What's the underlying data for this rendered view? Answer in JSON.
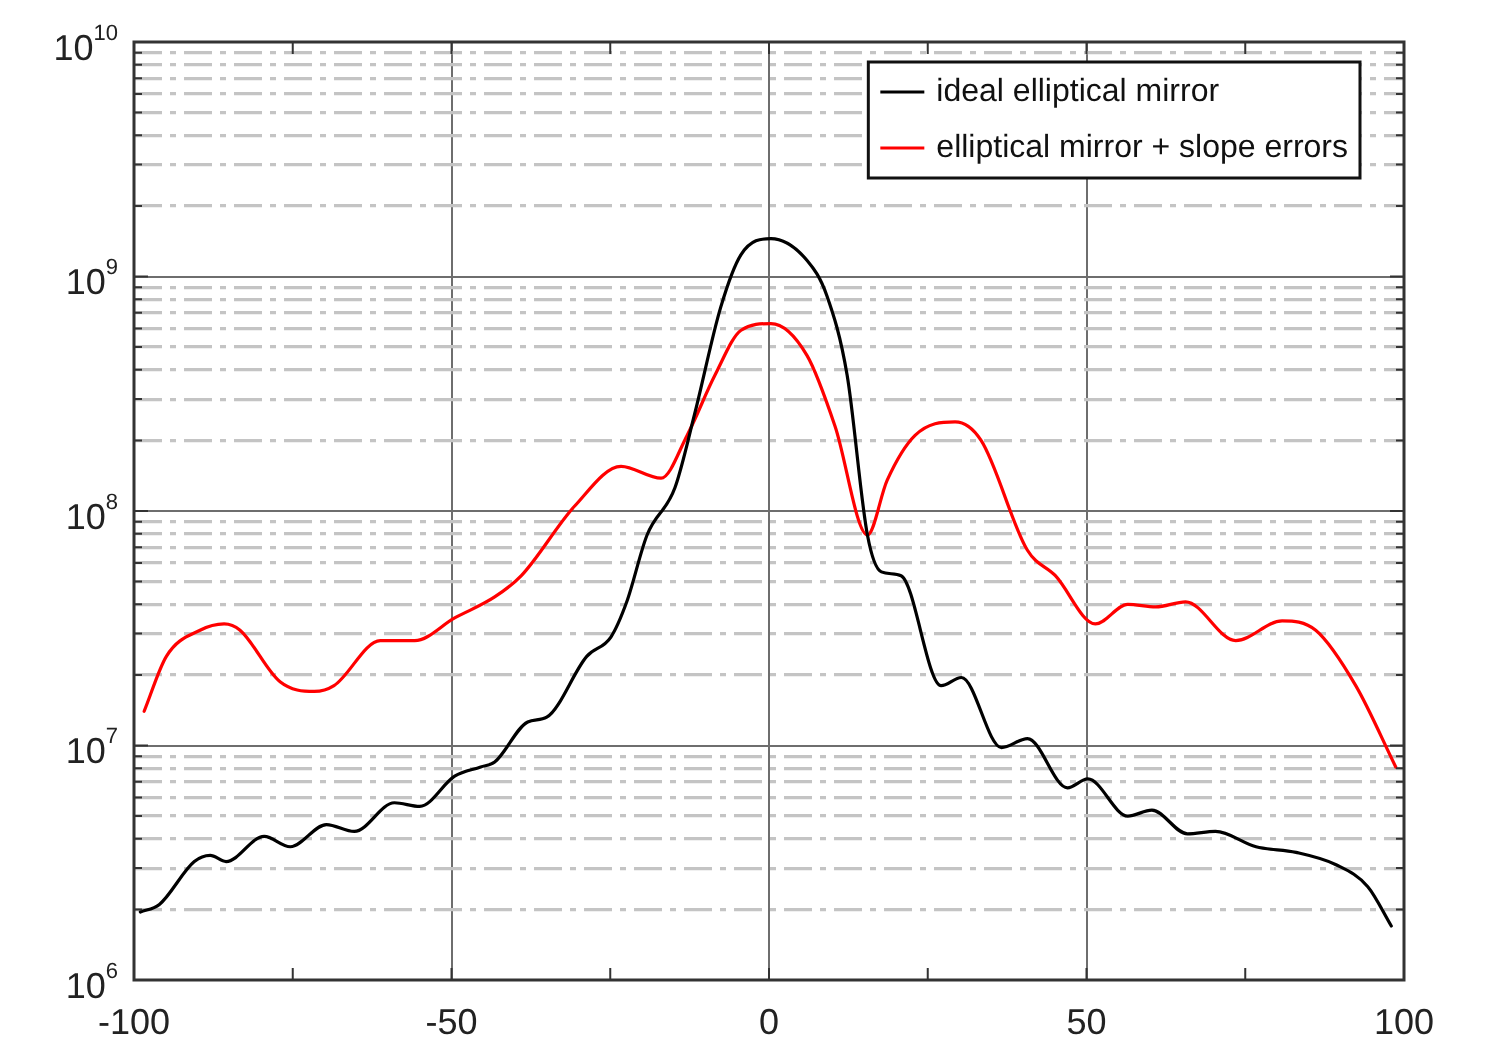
{
  "chart_data": {
    "type": "line",
    "log": "y",
    "grid": true,
    "legend": "top right",
    "marker": "none",
    "line_style": "solid",
    "xlim": [
      -100,
      100
    ],
    "xticks": [
      -100,
      {
        "value": -75,
        "label": null
      },
      -50,
      {
        "value": -25,
        "label": null
      },
      0,
      {
        "value": 25,
        "label": null
      },
      50,
      {
        "value": 75,
        "label": null
      },
      100
    ],
    "ylim": [
      1000000,
      10000000000
    ],
    "yticks": [
      {
        "value": 1000000,
        "label": "10$^{6}$"
      },
      {
        "value": 2000000,
        "label": null
      },
      {
        "value": 3000000,
        "label": null
      },
      {
        "value": 4000000,
        "label": null
      },
      {
        "value": 5000000,
        "label": null
      },
      {
        "value": 6000000,
        "label": null
      },
      {
        "value": 7000000,
        "label": null
      },
      {
        "value": 8000000,
        "label": null
      },
      {
        "value": 9000000,
        "label": null
      },
      {
        "value": 10000000,
        "label": "10$^{7}$"
      },
      {
        "value": 20000000,
        "label": null
      },
      {
        "value": 30000000,
        "label": null
      },
      {
        "value": 40000000,
        "label": null
      },
      {
        "value": 50000000,
        "label": null
      },
      {
        "value": 60000000,
        "label": null
      },
      {
        "value": 70000000,
        "label": null
      },
      {
        "value": 80000000,
        "label": null
      },
      {
        "value": 90000000,
        "label": null
      },
      {
        "value": 100000000,
        "label": "10$^{8}$"
      },
      {
        "value": 200000000,
        "label": null
      },
      {
        "value": 300000000,
        "label": null
      },
      {
        "value": 400000000,
        "label": null
      },
      {
        "value": 500000000,
        "label": null
      },
      {
        "value": 600000000,
        "label": null
      },
      {
        "value": 700000000,
        "label": null
      },
      {
        "value": 800000000,
        "label": null
      },
      {
        "value": 900000000,
        "label": null
      },
      {
        "value": 1000000000,
        "label": "10$^{9}$"
      },
      {
        "value": 2000000000,
        "label": null
      },
      {
        "value": 3000000000,
        "label": null
      },
      {
        "value": 4000000000,
        "label": null
      },
      {
        "value": 5000000000,
        "label": null
      },
      {
        "value": 6000000000,
        "label": null
      },
      {
        "value": 7000000000,
        "label": null
      },
      {
        "value": 8000000000,
        "label": null
      },
      {
        "value": 9000000000,
        "label": null
      },
      {
        "value": 10000000000,
        "label": "10$^{10}$"
      }
    ],
    "series": [
      {
        "name": "ideal elliptical mirror",
        "color": "#000000",
        "x": [
          -99,
          -96,
          -90.5,
          -88,
          -85.5,
          -79.5,
          -75.4,
          -69.7,
          -65.3,
          -59,
          -55,
          -49.5,
          -45.4,
          -43.2,
          -38,
          -35,
          -28.7,
          -24.9,
          -22.4,
          -19.2,
          -14.8,
          -11.7,
          -7.6,
          -4.4,
          0.3,
          6,
          9.1,
          12.3,
          15.5,
          17.7,
          20.8,
          27.1,
          30.3,
          36.6,
          40.7,
          47,
          50.2,
          56.5,
          60.3,
          65.9,
          70.3,
          76.7,
          83,
          89.3,
          94.3,
          98
        ],
        "values": [
          1950000,
          2100000,
          3200000,
          3400000,
          3200000,
          4100000,
          3700000,
          4600000,
          4300000,
          5700000,
          5500000,
          7400000,
          8100000,
          8500000,
          12600000,
          13200000,
          24000000,
          29000000,
          41000000,
          79000000,
          126000000,
          260000000,
          740000000,
          1240000000,
          1450000000,
          1170000000,
          830000000,
          380000000,
          79000000,
          55000000,
          53000000,
          18000000,
          19500000,
          9800000,
          10700000,
          6600000,
          7200000,
          5000000,
          5300000,
          4200000,
          4300000,
          3700000,
          3500000,
          3100000,
          2500000,
          1700000
        ]
      },
      {
        "name": "elliptical mirror + slope errors",
        "color": "#ff0000",
        "x": [
          -98.4,
          -94.9,
          -89.6,
          -85.8,
          -83.3,
          -77,
          -71.6,
          -68.5,
          -61.2,
          -55.8,
          -49.5,
          -43.2,
          -39,
          -30.6,
          -23.3,
          -17,
          -12.9,
          -8.5,
          -4.4,
          0.3,
          6,
          10.4,
          15.5,
          18.6,
          23,
          29.3,
          33.4,
          40.7,
          45.1,
          51.4,
          56.5,
          60.9,
          65.6,
          73.5,
          80.8,
          86.1,
          92.4,
          98.7
        ],
        "values": [
          14000000,
          24000000,
          31000000,
          33000000,
          31000000,
          18700000,
          17000000,
          18000000,
          28000000,
          28000000,
          35000000,
          43000000,
          53000000,
          105000000,
          155000000,
          138000000,
          210000000,
          380000000,
          590000000,
          630000000,
          460000000,
          230000000,
          79000000,
          135000000,
          210000000,
          240000000,
          200000000,
          68000000,
          53000000,
          33000000,
          40000000,
          39000000,
          41000000,
          28000000,
          34000000,
          31000000,
          18000000,
          8100000
        ]
      }
    ]
  }
}
